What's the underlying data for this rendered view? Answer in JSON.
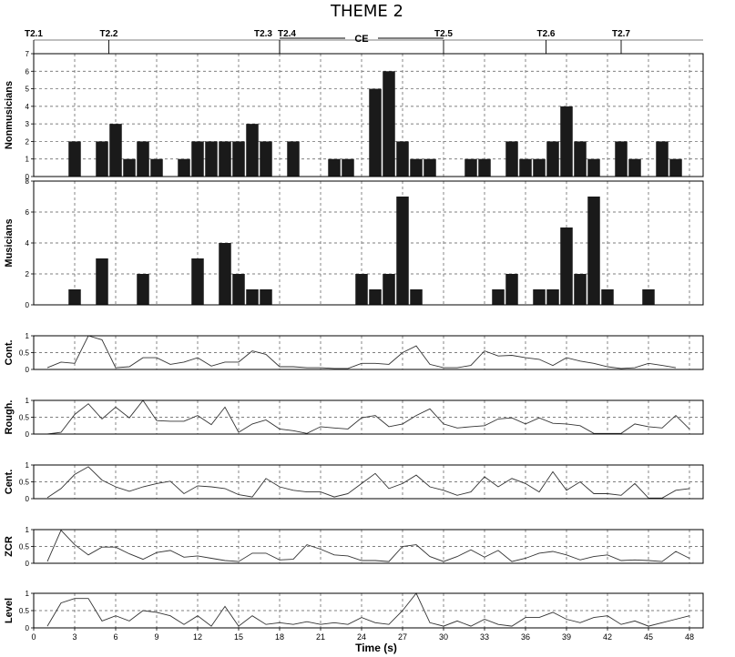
{
  "title": "THEME 2",
  "xlabel": "Time (s)",
  "x_ticks": [
    "0",
    "3",
    "6",
    "9",
    "12",
    "15",
    "18",
    "21",
    "24",
    "27",
    "30",
    "33",
    "36",
    "39",
    "42",
    "45",
    "48"
  ],
  "segments": [
    {
      "label": "T2.1",
      "time": 0
    },
    {
      "label": "T2.2",
      "time": 5.5
    },
    {
      "label": "T2.3",
      "time": 18
    },
    {
      "label": "T2.4",
      "time": 18
    },
    {
      "label": "T2.5",
      "time": 30
    },
    {
      "label": "T2.6",
      "time": 37.5
    },
    {
      "label": "T2.7",
      "time": 43
    }
  ],
  "ce": {
    "label": "CE",
    "start": 18,
    "end": 30
  },
  "colors": {
    "bar": "#1a1a1a",
    "line": "#333333",
    "grid": "#555555"
  },
  "chart_data": [
    {
      "type": "bar",
      "ylabel": "Nonmusicians",
      "ylim": [
        0,
        7
      ],
      "yticks": [
        "0",
        "1",
        "2",
        "3",
        "4",
        "5",
        "6",
        "7"
      ],
      "x": [
        3,
        5,
        6,
        7,
        8,
        9,
        11,
        12,
        13,
        14,
        15,
        16,
        17,
        19,
        22,
        23,
        25,
        26,
        27,
        28,
        29,
        32,
        33,
        35,
        36,
        37,
        38,
        39,
        40,
        41,
        43,
        44,
        46,
        47
      ],
      "values": [
        2,
        2,
        3,
        1,
        2,
        1,
        1,
        2,
        2,
        2,
        2,
        3,
        2,
        2,
        1,
        1,
        5,
        6,
        2,
        1,
        1,
        1,
        1,
        2,
        1,
        1,
        2,
        4,
        2,
        1,
        2,
        1,
        2,
        1
      ]
    },
    {
      "type": "bar",
      "ylabel": "Musicians",
      "ylim": [
        0,
        8
      ],
      "yticks": [
        "0",
        "2",
        "4",
        "6",
        "8"
      ],
      "x": [
        3,
        5,
        8,
        12,
        14,
        15,
        16,
        17,
        24,
        25,
        26,
        27,
        28,
        34,
        35,
        37,
        38,
        39,
        40,
        41,
        42,
        45
      ],
      "values": [
        1,
        3,
        2,
        3,
        4,
        2,
        1,
        1,
        2,
        1,
        2,
        7,
        1,
        1,
        2,
        1,
        1,
        5,
        2,
        7,
        1,
        1
      ]
    },
    {
      "type": "line",
      "ylabel": "Cont.",
      "ylim": [
        0,
        1
      ],
      "yticks": [
        "0",
        "0.5",
        "1"
      ],
      "x": [
        1,
        2,
        3,
        4,
        5,
        6,
        7,
        8,
        9,
        10,
        11,
        12,
        13,
        14,
        15,
        16,
        17,
        18,
        19,
        20,
        21,
        22,
        23,
        24,
        25,
        26,
        27,
        28,
        29,
        30,
        31,
        32,
        33,
        34,
        35,
        36,
        37,
        38,
        39,
        40,
        41,
        42,
        43,
        44,
        45,
        46,
        47
      ],
      "values": [
        0.05,
        0.22,
        0.18,
        1.0,
        0.88,
        0.05,
        0.08,
        0.35,
        0.35,
        0.15,
        0.22,
        0.35,
        0.1,
        0.22,
        0.22,
        0.55,
        0.45,
        0.08,
        0.08,
        0.05,
        0.05,
        0.03,
        0.03,
        0.18,
        0.18,
        0.15,
        0.5,
        0.7,
        0.15,
        0.05,
        0.05,
        0.12,
        0.55,
        0.4,
        0.42,
        0.35,
        0.3,
        0.12,
        0.35,
        0.25,
        0.18,
        0.08,
        0.03,
        0.05,
        0.18,
        0.12,
        0.05
      ]
    },
    {
      "type": "line",
      "ylabel": "Rough.",
      "ylim": [
        0,
        1
      ],
      "yticks": [
        "0",
        "0.5",
        "1"
      ],
      "x": [
        1,
        2,
        3,
        4,
        5,
        6,
        7,
        8,
        9,
        10,
        11,
        12,
        13,
        14,
        15,
        16,
        17,
        18,
        19,
        20,
        21,
        22,
        23,
        24,
        25,
        26,
        27,
        28,
        29,
        30,
        31,
        32,
        33,
        34,
        35,
        36,
        37,
        38,
        39,
        40,
        41,
        42,
        43,
        44,
        45,
        46,
        47,
        48
      ],
      "values": [
        0.0,
        0.05,
        0.58,
        0.9,
        0.45,
        0.8,
        0.48,
        1.0,
        0.4,
        0.38,
        0.38,
        0.55,
        0.28,
        0.8,
        0.05,
        0.3,
        0.42,
        0.15,
        0.1,
        0.02,
        0.22,
        0.18,
        0.15,
        0.48,
        0.55,
        0.22,
        0.3,
        0.55,
        0.75,
        0.3,
        0.18,
        0.22,
        0.25,
        0.45,
        0.48,
        0.3,
        0.48,
        0.32,
        0.3,
        0.25,
        0.02,
        0.02,
        0.02,
        0.3,
        0.22,
        0.18,
        0.55,
        0.15
      ]
    },
    {
      "type": "line",
      "ylabel": "Cent.",
      "ylim": [
        0,
        1
      ],
      "yticks": [
        "0",
        "0.5",
        "1"
      ],
      "x": [
        1,
        2,
        3,
        4,
        5,
        6,
        7,
        8,
        9,
        10,
        11,
        12,
        13,
        14,
        15,
        16,
        17,
        18,
        19,
        20,
        21,
        22,
        23,
        24,
        25,
        26,
        27,
        28,
        29,
        30,
        31,
        32,
        33,
        34,
        35,
        36,
        37,
        38,
        39,
        40,
        41,
        42,
        43,
        44,
        45,
        46,
        47,
        48
      ],
      "values": [
        0.03,
        0.3,
        0.72,
        0.95,
        0.55,
        0.35,
        0.22,
        0.35,
        0.45,
        0.52,
        0.15,
        0.38,
        0.35,
        0.3,
        0.12,
        0.05,
        0.6,
        0.35,
        0.25,
        0.2,
        0.2,
        0.05,
        0.15,
        0.45,
        0.75,
        0.3,
        0.45,
        0.7,
        0.35,
        0.25,
        0.1,
        0.2,
        0.65,
        0.35,
        0.6,
        0.45,
        0.2,
        0.8,
        0.25,
        0.5,
        0.15,
        0.15,
        0.1,
        0.45,
        0.02,
        0.02,
        0.25,
        0.3
      ]
    },
    {
      "type": "line",
      "ylabel": "ZCR",
      "ylim": [
        0,
        1
      ],
      "yticks": [
        "0",
        "0.5",
        "1"
      ],
      "x": [
        1,
        2,
        3,
        4,
        5,
        6,
        7,
        8,
        9,
        10,
        11,
        12,
        13,
        14,
        15,
        16,
        17,
        18,
        19,
        20,
        21,
        22,
        23,
        24,
        25,
        26,
        27,
        28,
        29,
        30,
        31,
        32,
        33,
        34,
        35,
        36,
        37,
        38,
        39,
        40,
        41,
        42,
        43,
        44,
        45,
        46,
        47,
        48
      ],
      "values": [
        0.05,
        0.98,
        0.55,
        0.25,
        0.48,
        0.48,
        0.28,
        0.12,
        0.32,
        0.38,
        0.18,
        0.22,
        0.15,
        0.08,
        0.05,
        0.3,
        0.3,
        0.1,
        0.12,
        0.55,
        0.42,
        0.25,
        0.22,
        0.08,
        0.08,
        0.05,
        0.5,
        0.55,
        0.2,
        0.05,
        0.2,
        0.4,
        0.18,
        0.38,
        0.05,
        0.15,
        0.3,
        0.35,
        0.25,
        0.1,
        0.2,
        0.25,
        0.08,
        0.1,
        0.08,
        0.05,
        0.35,
        0.15
      ]
    },
    {
      "type": "line",
      "ylabel": "Level",
      "ylim": [
        0,
        1
      ],
      "yticks": [
        "0",
        "0.5",
        "1"
      ],
      "x": [
        1,
        2,
        3,
        4,
        5,
        6,
        7,
        8,
        9,
        10,
        11,
        12,
        13,
        14,
        15,
        16,
        17,
        18,
        19,
        20,
        21,
        22,
        23,
        24,
        25,
        26,
        27,
        28,
        29,
        30,
        31,
        32,
        33,
        34,
        35,
        36,
        37,
        38,
        39,
        40,
        41,
        42,
        43,
        44,
        45,
        46,
        47,
        48
      ],
      "values": [
        0.05,
        0.72,
        0.85,
        0.85,
        0.2,
        0.35,
        0.2,
        0.5,
        0.45,
        0.35,
        0.1,
        0.35,
        0.05,
        0.62,
        0.05,
        0.35,
        0.1,
        0.15,
        0.1,
        0.18,
        0.1,
        0.15,
        0.1,
        0.3,
        0.15,
        0.1,
        0.5,
        1.0,
        0.15,
        0.05,
        0.2,
        0.05,
        0.25,
        0.1,
        0.05,
        0.3,
        0.3,
        0.45,
        0.25,
        0.15,
        0.3,
        0.35,
        0.1,
        0.2,
        0.05,
        0.15,
        0.25,
        0.35
      ]
    }
  ]
}
